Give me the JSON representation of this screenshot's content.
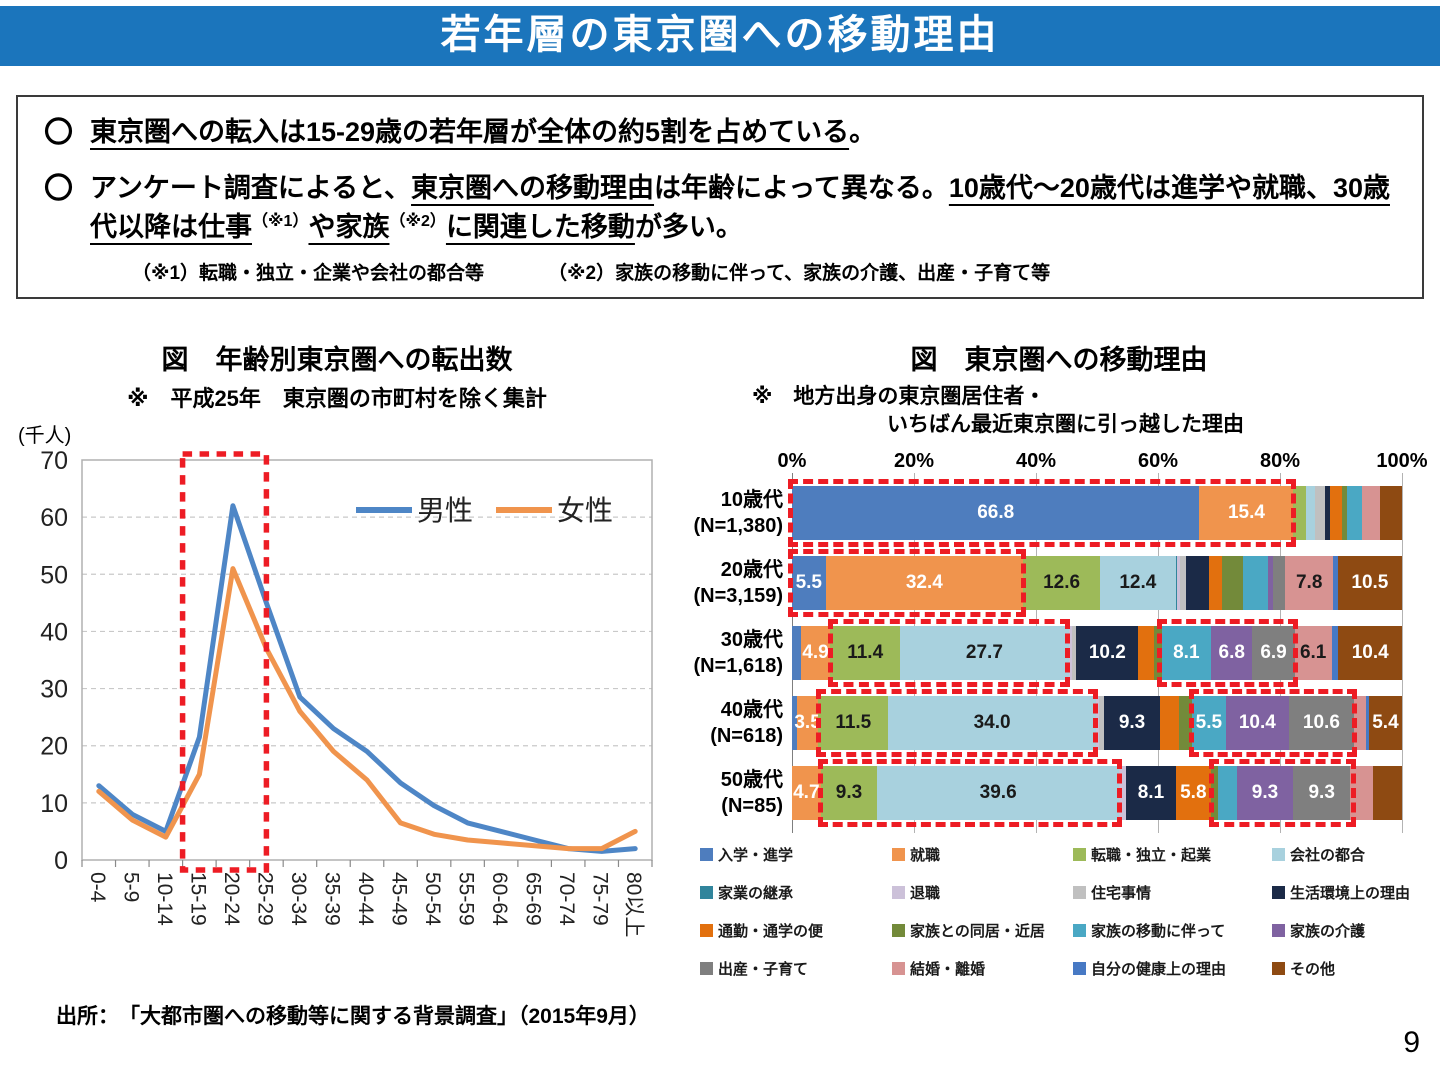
{
  "colors": {
    "banner_blue": "#1b75bc",
    "highlight_red": "#ed1c24"
  },
  "page": {
    "title": "若年層の東京圏への移動理由",
    "source": "出所：　「大都市圏への移動等に関する背景調査」（2015年9月）",
    "page_number": "9"
  },
  "summary_box": {
    "marker1": "〇",
    "marker2": "〇",
    "bullet1": {
      "main_u": "東京圏への転入は15-29歳の若年層が全体の約5割を占めている",
      "tail": "。"
    },
    "bullet2": {
      "seg1": "アンケート調査によると、",
      "seg2_u": "東京圏への移動理由",
      "seg3": "は年齢によって異なる。",
      "seg4_u": "10歳代～20歳代は進学や就職、30歳代以降は仕事",
      "sup1": "（※1）",
      "seg5_u": "や家族",
      "sup2": "（※2）",
      "seg6_u": "に関連した移動",
      "seg7": "が多い。"
    },
    "note1": "（※1）転職・独立・企業や会社の都合等",
    "note2": "（※2）家族の移動に伴って、家族の介護、出産・子育て等"
  },
  "chart_data": [
    {
      "type": "line",
      "title": "図　年齢別東京圏への転出数",
      "subtitle": "※　平成25年　東京圏の市町村を除く集計",
      "unit_label": "(千人)",
      "ylim": [
        0,
        70
      ],
      "ytick_step": 10,
      "grid": "horizontal dashed",
      "legend_position": "top-right inside plot",
      "categories": [
        "0-4",
        "5-9",
        "10-14",
        "15-19",
        "20-24",
        "25-29",
        "30-34",
        "35-39",
        "40-44",
        "45-49",
        "50-54",
        "55-59",
        "60-64",
        "65-69",
        "70-74",
        "75-79",
        "80以上"
      ],
      "series": [
        {
          "name": "男性",
          "color": "#4e86c6",
          "values": [
            13,
            8,
            5,
            21.5,
            62,
            45,
            28.5,
            23,
            19,
            13.5,
            9.5,
            6.5,
            5,
            3.5,
            2,
            1.5,
            2
          ]
        },
        {
          "name": "女性",
          "color": "#f0944d",
          "values": [
            12,
            7,
            4,
            15,
            51,
            37,
            26,
            19,
            14,
            6.5,
            4.5,
            3.5,
            3,
            2.5,
            2,
            2,
            5
          ]
        }
      ],
      "highlight": {
        "type": "red-dashed-rect",
        "from_category": "15-19",
        "to_category": "25-29",
        "color": "#ed1c24"
      }
    },
    {
      "type": "bar",
      "orientation": "horizontal-stacked-100pct",
      "title": "図　東京圏への移動理由",
      "subtitle_line1": "※　地方出身の東京圏居住者・",
      "subtitle_line2": "いちばん最近東京圏に引っ越した理由",
      "xticks": [
        "0%",
        "20%",
        "40%",
        "60%",
        "80%",
        "100%"
      ],
      "categories": [
        "入学・進学",
        "就職",
        "転職・独立・起業",
        "会社の都合",
        "家業の継承",
        "退職",
        "住宅事情",
        "生活環境上の理由",
        "通勤・通学の便",
        "家族との同居・近居",
        "家族の移動に伴って",
        "家族の介護",
        "出産・子育て",
        "結婚・離婚",
        "自分の健康上の理由",
        "その他"
      ],
      "colors": [
        "#4e7dbe",
        "#f0944d",
        "#9dba59",
        "#a8d1de",
        "#31859c",
        "#ccc1d9",
        "#c0c0c0",
        "#1b2a47",
        "#e2700e",
        "#738a3a",
        "#4aa8c4",
        "#7f62a1",
        "#7f7f7f",
        "#d79392",
        "#4779c4",
        "#8e4a12"
      ],
      "dark_text_categories": [
        2,
        3,
        5,
        6,
        13
      ],
      "highlight_color": "#ed1c24",
      "rows": [
        {
          "label": "10歳代",
          "n_label": "(N=1,380)",
          "values": [
            66.8,
            15.4,
            2.0,
            1.6,
            0,
            0,
            1.6,
            0.8,
            2.0,
            0.8,
            2.4,
            0,
            0,
            3.0,
            0,
            3.6
          ],
          "shown_labels": {
            "0": "66.8",
            "1": "15.4"
          }
        },
        {
          "label": "20歳代",
          "n_label": "(N=3,159)",
          "values": [
            5.5,
            32.4,
            12.6,
            12.4,
            0.3,
            0.4,
            1.0,
            3.8,
            2.1,
            3.5,
            4.0,
            0.9,
            2.0,
            7.8,
            0.8,
            10.5
          ],
          "shown_labels": {
            "0": "5.5",
            "1": "32.4",
            "2": "12.6",
            "3": "12.4",
            "13": "7.8",
            "15": "10.5"
          }
        },
        {
          "label": "30歳代",
          "n_label": "(N=1,618)",
          "values": [
            1.4,
            4.9,
            11.4,
            27.7,
            0,
            0.5,
            0.7,
            10.2,
            2.6,
            1.2,
            8.1,
            6.8,
            6.9,
            6.1,
            1.1,
            10.4
          ],
          "shown_labels": {
            "1": "4.9",
            "2": "11.4",
            "3": "27.7",
            "7": "10.2",
            "10": "8.1",
            "11": "6.8",
            "12": "6.9",
            "13": "6.1",
            "15": "10.4"
          }
        },
        {
          "label": "40歳代",
          "n_label": "(N=618)",
          "values": [
            0.8,
            3.5,
            11.5,
            34.0,
            0,
            0.5,
            0.8,
            9.3,
            3.0,
            2.2,
            5.5,
            10.4,
            10.6,
            2.0,
            0.5,
            5.4
          ],
          "shown_labels": {
            "1": "3.5",
            "2": "11.5",
            "3": "34.0",
            "7": "9.3",
            "10": "5.5",
            "11": "10.4",
            "12": "10.6",
            "15": "5.4"
          }
        },
        {
          "label": "50歳代",
          "n_label": "(N=85)",
          "values": [
            0,
            4.7,
            9.3,
            39.6,
            0,
            1.2,
            0,
            8.1,
            5.8,
            1.2,
            3.0,
            9.3,
            9.3,
            3.8,
            0,
            4.7
          ],
          "shown_labels": {
            "1": "4.7",
            "2": "9.3",
            "3": "39.6",
            "7": "8.1",
            "8": "5.8",
            "11": "9.3",
            "12": "9.3"
          }
        }
      ],
      "highlights": [
        {
          "row": 0,
          "from_pct": -0.7,
          "to_pct": 82.7
        },
        {
          "row": 1,
          "from_pct": -0.7,
          "to_pct": 38.3
        },
        {
          "row": 2,
          "from_pct": 5.9,
          "to_pct": 45.6
        },
        {
          "row": 2,
          "from_pct": 59.8,
          "to_pct": 82.9
        },
        {
          "row": 3,
          "from_pct": 4.0,
          "to_pct": 50.2
        },
        {
          "row": 3,
          "from_pct": 65.0,
          "to_pct": 92.6
        },
        {
          "row": 4,
          "from_pct": 4.3,
          "to_pct": 54.1
        },
        {
          "row": 4,
          "from_pct": 68.3,
          "to_pct": 92.4
        }
      ]
    }
  ]
}
